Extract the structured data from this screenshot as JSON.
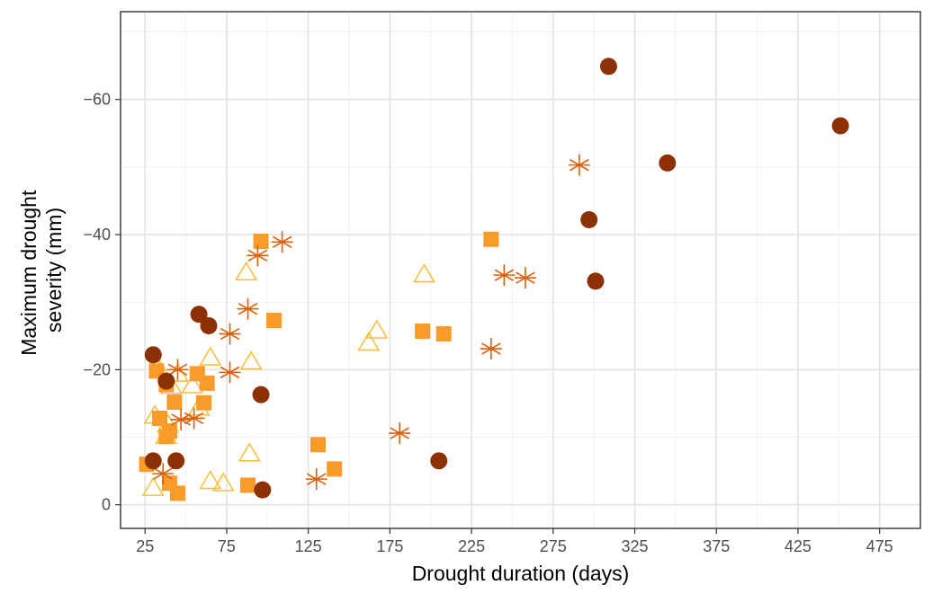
{
  "chart_data": {
    "type": "scatter",
    "xlabel": "Drought duration (days)",
    "ylabel": [
      "Maximum drought",
      "severity (mm)"
    ],
    "xlim": [
      10,
      500
    ],
    "ylim": [
      -73,
      3.5
    ],
    "y_axis_reversed": true,
    "x_ticks": [
      25,
      75,
      125,
      175,
      225,
      275,
      325,
      375,
      425,
      475
    ],
    "y_ticks": [
      0,
      -20,
      -40,
      -60
    ],
    "y_tick_labels": [
      "0",
      "−20",
      "−40",
      "−60"
    ],
    "grid": true,
    "legend": "none",
    "series": [
      {
        "marker": "filled-circle",
        "color": "#8B3103",
        "points": [
          [
            309,
            -64.9
          ],
          [
            451,
            -56.1
          ],
          [
            345,
            -50.6
          ],
          [
            297,
            -42.2
          ],
          [
            301,
            -33.1
          ],
          [
            58,
            -28.2
          ],
          [
            64,
            -26.5
          ],
          [
            30,
            -22.2
          ],
          [
            38,
            -18.3
          ],
          [
            96,
            -16.3
          ],
          [
            30,
            -6.5
          ],
          [
            44,
            -6.5
          ],
          [
            205,
            -6.5
          ],
          [
            97,
            -2.2
          ]
        ]
      },
      {
        "marker": "asterisk",
        "color": "#DD5F0B",
        "points": [
          [
            291,
            -50.3
          ],
          [
            109,
            -38.9
          ],
          [
            94,
            -36.9
          ],
          [
            245,
            -34.0
          ],
          [
            258,
            -33.6
          ],
          [
            88,
            -29.0
          ],
          [
            77,
            -25.3
          ],
          [
            237,
            -23.1
          ],
          [
            45,
            -20.0
          ],
          [
            77,
            -19.6
          ],
          [
            55,
            -12.8
          ],
          [
            47,
            -12.6
          ],
          [
            181,
            -10.6
          ],
          [
            36,
            -4.6
          ],
          [
            130,
            -3.8
          ]
        ]
      },
      {
        "marker": "filled-square",
        "color": "#F99B29",
        "points": [
          [
            96,
            -39.0
          ],
          [
            237,
            -39.3
          ],
          [
            104,
            -27.3
          ],
          [
            195,
            -25.7
          ],
          [
            208,
            -25.3
          ],
          [
            32,
            -19.8
          ],
          [
            57,
            -19.4
          ],
          [
            63,
            -18.0
          ],
          [
            38,
            -17.8
          ],
          [
            43,
            -15.2
          ],
          [
            61,
            -15.1
          ],
          [
            34,
            -12.8
          ],
          [
            40,
            -10.9
          ],
          [
            38,
            -10.1
          ],
          [
            131,
            -8.9
          ],
          [
            141,
            -5.3
          ],
          [
            26,
            -6.0
          ],
          [
            88,
            -2.9
          ],
          [
            45,
            -1.7
          ],
          [
            40,
            -3.2
          ]
        ]
      },
      {
        "marker": "open-triangle",
        "color": "#F6C042",
        "points": [
          [
            87,
            -34.3
          ],
          [
            196,
            -34.0
          ],
          [
            167,
            -25.7
          ],
          [
            162,
            -23.9
          ],
          [
            65,
            -21.7
          ],
          [
            90,
            -21.1
          ],
          [
            34,
            -19.8
          ],
          [
            45,
            -19.3
          ],
          [
            41,
            -17.5
          ],
          [
            54,
            -17.6
          ],
          [
            58,
            -14.3
          ],
          [
            31,
            -13.1
          ],
          [
            39,
            -11.8
          ],
          [
            38,
            -10.1
          ],
          [
            89,
            -7.5
          ],
          [
            65,
            -3.4
          ],
          [
            73,
            -3.1
          ],
          [
            30,
            -2.4
          ]
        ]
      }
    ]
  }
}
